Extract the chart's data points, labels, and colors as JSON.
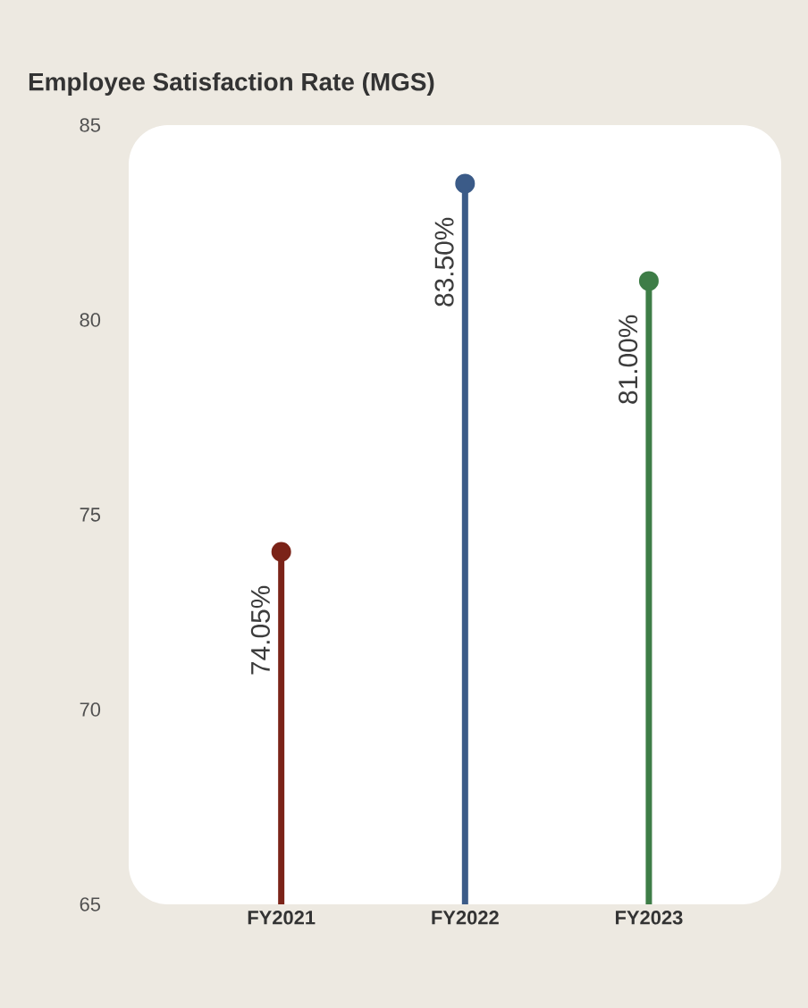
{
  "chart_data": {
    "type": "lollipop",
    "title": "Employee Satisfaction Rate (MGS)",
    "categories": [
      "FY2021",
      "FY2022",
      "FY2023"
    ],
    "values": [
      74.05,
      83.5,
      81.0
    ],
    "colors": [
      "#7b2318",
      "#3b5b88",
      "#3e7d47"
    ],
    "value_labels": [
      "74.05%",
      "83.50%",
      "81.00%"
    ],
    "ylim": [
      65,
      85
    ],
    "yticks": [
      65,
      70,
      75,
      80,
      85
    ],
    "marker": "circle",
    "grid": false
  }
}
